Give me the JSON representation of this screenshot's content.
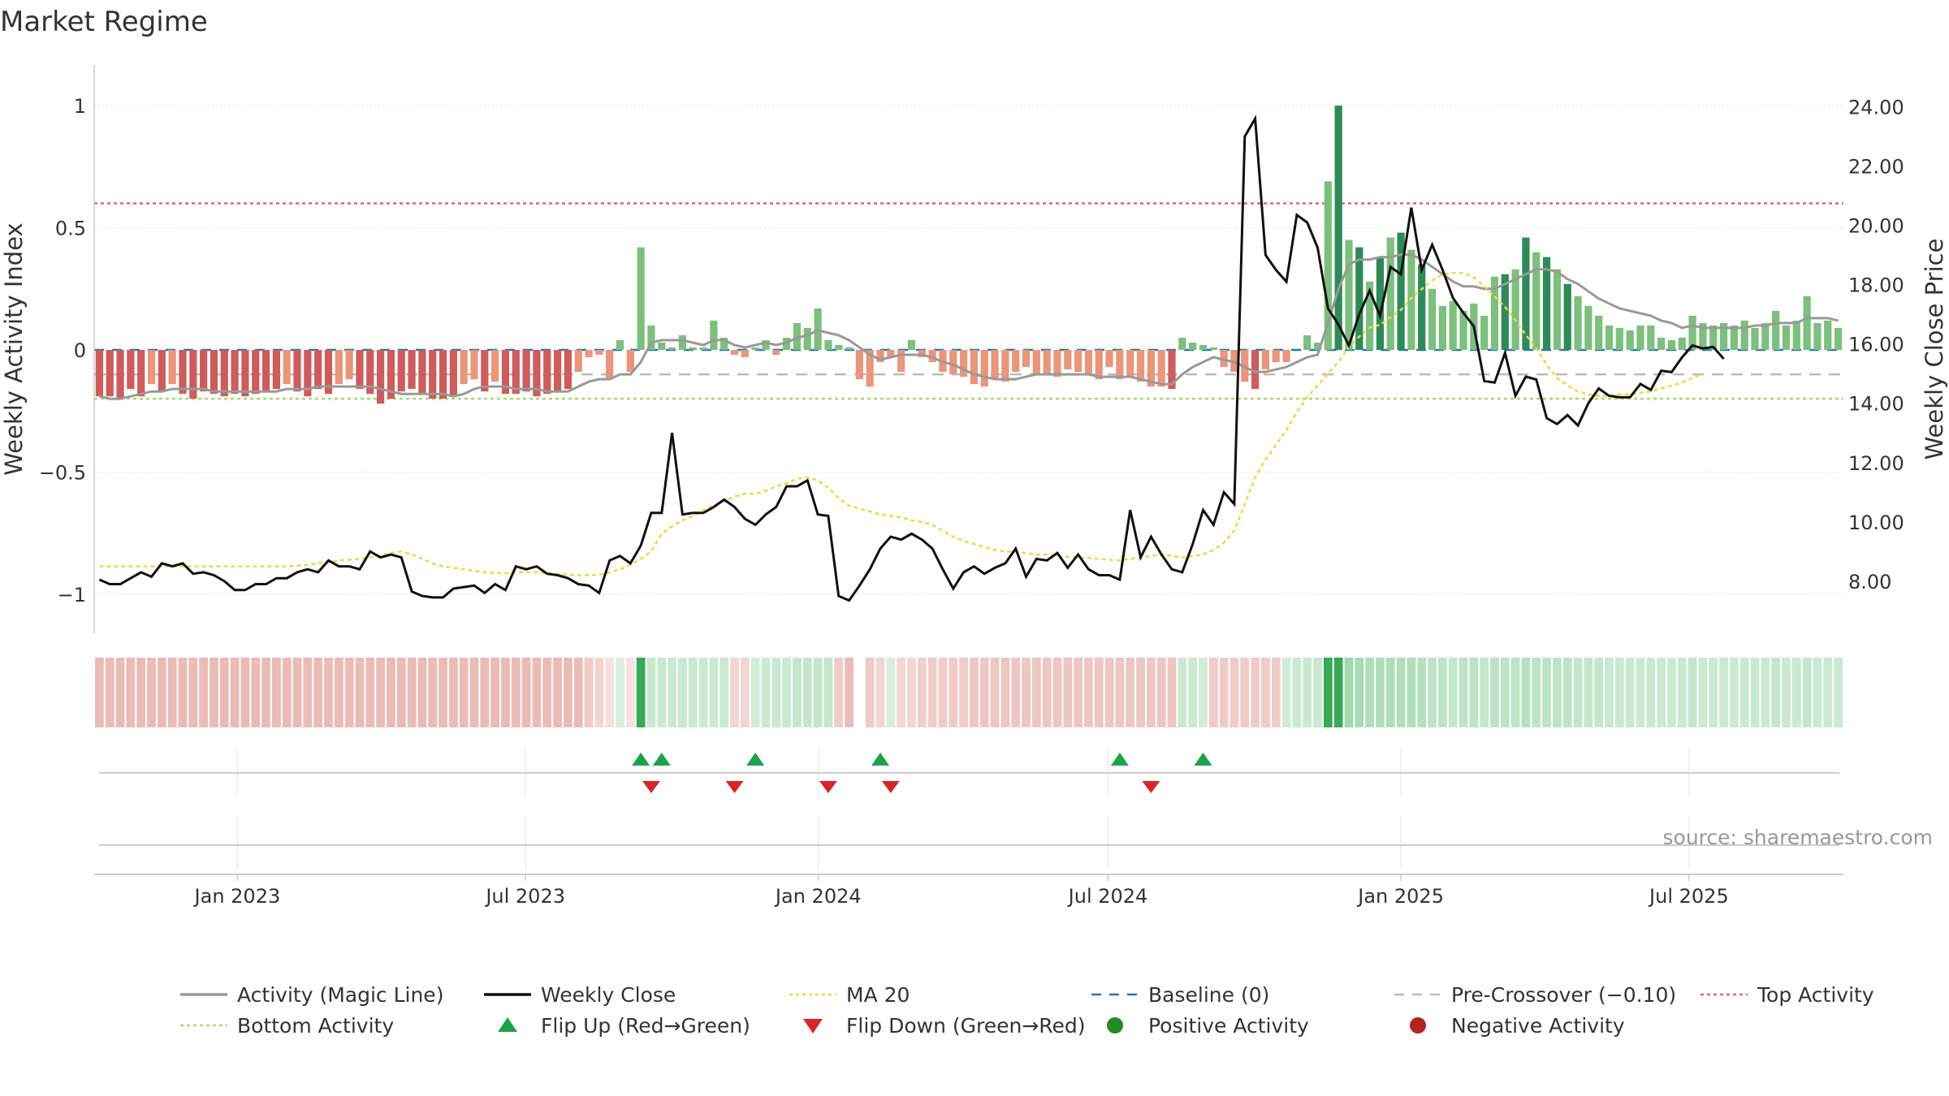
{
  "title": "Market Regime",
  "source": "source: sharemaestro.com",
  "colors": {
    "strong_pos": "#2e8b57",
    "weak_pos": "#7dbf7d",
    "strong_neg": "#cd5c5c",
    "weak_neg": "#e9967a",
    "magic_line": "#999999",
    "close": "#111111",
    "ma20": "#f0d84a",
    "baseline": "#1f77b4",
    "pre_crossover": "#bbbbbb",
    "top_activity": "#e0608a",
    "bottom_activity": "#a6d96a",
    "flip_up": "#1ca34a",
    "flip_down": "#d62728",
    "positive_dot": "#228b22",
    "negative_dot": "#b22222"
  },
  "chart_data": {
    "type": "bar",
    "x_axis": {
      "start": "2022-10-03",
      "end": "2025-10-06",
      "tick_dates": [
        "2023-01-01",
        "2023-07-01",
        "2024-01-01",
        "2024-07-01",
        "2025-01-01",
        "2025-07-01"
      ],
      "tick_labels": [
        "Jan 2023",
        "Jul 2023",
        "Jan 2024",
        "Jul 2024",
        "Jan 2025",
        "Jul 2025"
      ]
    },
    "y_left": {
      "label": "Weekly Activity Index",
      "range": [
        -1.08,
        1.08
      ],
      "ticks": [
        -1,
        -0.5,
        0,
        0.5,
        1
      ],
      "tick_labels": [
        "−1",
        "−0.5",
        "0",
        "0.5",
        "1"
      ]
    },
    "y_right": {
      "label": "Weekly Close Price",
      "range": [
        6.9,
        24.7
      ],
      "ticks": [
        8,
        10,
        12,
        14,
        16,
        18,
        20,
        22,
        24
      ],
      "tick_labels": [
        "8.00",
        "10.00",
        "12.00",
        "14.00",
        "16.00",
        "18.00",
        "20.00",
        "22.00",
        "24.00"
      ]
    },
    "reference_lines": {
      "baseline": 0,
      "pre_crossover": -0.1,
      "top_activity": 0.6,
      "bottom_activity": -0.2
    },
    "activity": [
      -0.19,
      -0.19,
      -0.2,
      -0.16,
      -0.19,
      -0.14,
      -0.17,
      -0.14,
      -0.18,
      -0.2,
      -0.17,
      -0.18,
      -0.19,
      -0.18,
      -0.19,
      -0.18,
      -0.17,
      -0.16,
      -0.14,
      -0.17,
      -0.19,
      -0.16,
      -0.18,
      -0.14,
      -0.12,
      -0.16,
      -0.18,
      -0.22,
      -0.2,
      -0.17,
      -0.16,
      -0.18,
      -0.2,
      -0.2,
      -0.19,
      -0.14,
      -0.12,
      -0.17,
      -0.13,
      -0.18,
      -0.18,
      -0.17,
      -0.19,
      -0.18,
      -0.17,
      -0.16,
      -0.09,
      -0.03,
      -0.02,
      -0.12,
      0.04,
      -0.09,
      0.42,
      0.1,
      0.03,
      0.01,
      0.06,
      0.01,
      0.01,
      0.12,
      0.05,
      -0.02,
      -0.03,
      0.01,
      0.04,
      -0.02,
      0.05,
      0.11,
      0.09,
      0.17,
      0.04,
      0.02,
      0.01,
      -0.12,
      -0.15,
      -0.05,
      -0.03,
      -0.09,
      0.04,
      -0.03,
      -0.05,
      -0.09,
      -0.1,
      -0.11,
      -0.14,
      -0.15,
      -0.12,
      -0.13,
      -0.09,
      -0.07,
      -0.1,
      -0.1,
      -0.11,
      -0.08,
      -0.09,
      -0.1,
      -0.12,
      -0.07,
      -0.12,
      -0.11,
      -0.13,
      -0.15,
      -0.15,
      -0.16,
      0.05,
      0.03,
      0.02,
      0.01,
      -0.07,
      -0.09,
      -0.13,
      -0.16,
      -0.08,
      -0.05,
      -0.05,
      0.0,
      0.06,
      0.03,
      0.69,
      1.0,
      0.45,
      0.42,
      0.28,
      0.38,
      0.46,
      0.48,
      0.41,
      0.35,
      0.25,
      0.18,
      0.2,
      0.16,
      0.19,
      0.14,
      0.3,
      0.31,
      0.33,
      0.46,
      0.4,
      0.38,
      0.33,
      0.27,
      0.22,
      0.18,
      0.14,
      0.1,
      0.09,
      0.08,
      0.1,
      0.1,
      0.05,
      0.04,
      0.05,
      0.14,
      0.11,
      0.1,
      0.11,
      0.1,
      0.12,
      0.09,
      0.11,
      0.16,
      0.1,
      0.12,
      0.22,
      0.11,
      0.12,
      0.09
    ],
    "magic_line": [
      -0.19,
      -0.2,
      -0.2,
      -0.19,
      -0.18,
      -0.17,
      -0.17,
      -0.16,
      -0.16,
      -0.16,
      -0.16,
      -0.17,
      -0.17,
      -0.17,
      -0.17,
      -0.17,
      -0.17,
      -0.17,
      -0.16,
      -0.16,
      -0.16,
      -0.15,
      -0.15,
      -0.15,
      -0.15,
      -0.15,
      -0.15,
      -0.16,
      -0.17,
      -0.18,
      -0.18,
      -0.18,
      -0.18,
      -0.18,
      -0.19,
      -0.18,
      -0.16,
      -0.15,
      -0.15,
      -0.15,
      -0.16,
      -0.16,
      -0.16,
      -0.17,
      -0.17,
      -0.17,
      -0.15,
      -0.13,
      -0.12,
      -0.12,
      -0.1,
      -0.1,
      -0.05,
      0.03,
      0.04,
      0.04,
      0.04,
      0.03,
      0.02,
      0.04,
      0.04,
      0.02,
      0.01,
      0.02,
      0.03,
      0.02,
      0.03,
      0.05,
      0.06,
      0.08,
      0.07,
      0.06,
      0.04,
      0.01,
      -0.02,
      -0.04,
      -0.03,
      -0.02,
      -0.02,
      -0.02,
      -0.03,
      -0.05,
      -0.06,
      -0.08,
      -0.1,
      -0.11,
      -0.12,
      -0.12,
      -0.12,
      -0.11,
      -0.1,
      -0.1,
      -0.1,
      -0.1,
      -0.1,
      -0.1,
      -0.11,
      -0.11,
      -0.11,
      -0.11,
      -0.12,
      -0.13,
      -0.14,
      -0.14,
      -0.1,
      -0.07,
      -0.05,
      -0.03,
      -0.04,
      -0.05,
      -0.07,
      -0.09,
      -0.09,
      -0.08,
      -0.07,
      -0.05,
      -0.03,
      -0.02,
      0.11,
      0.25,
      0.35,
      0.37,
      0.37,
      0.38,
      0.38,
      0.39,
      0.39,
      0.37,
      0.34,
      0.31,
      0.28,
      0.26,
      0.26,
      0.25,
      0.25,
      0.27,
      0.29,
      0.31,
      0.33,
      0.33,
      0.32,
      0.29,
      0.27,
      0.24,
      0.21,
      0.19,
      0.17,
      0.16,
      0.15,
      0.14,
      0.12,
      0.11,
      0.09,
      0.1,
      0.09,
      0.09,
      0.09,
      0.09,
      0.09,
      0.1,
      0.1,
      0.11,
      0.11,
      0.11,
      0.13,
      0.13,
      0.13,
      0.12
    ],
    "weekly_close": [
      8.05,
      7.9,
      7.9,
      8.1,
      8.3,
      8.15,
      8.6,
      8.5,
      8.6,
      8.25,
      8.3,
      8.2,
      8.0,
      7.7,
      7.7,
      7.9,
      7.9,
      8.1,
      8.1,
      8.3,
      8.4,
      8.3,
      8.7,
      8.5,
      8.5,
      8.4,
      9.0,
      8.8,
      8.9,
      8.8,
      7.65,
      7.5,
      7.45,
      7.45,
      7.75,
      7.8,
      7.85,
      7.6,
      7.9,
      7.7,
      8.5,
      8.4,
      8.5,
      8.25,
      8.2,
      8.1,
      7.9,
      7.85,
      7.6,
      8.7,
      8.85,
      8.6,
      9.2,
      10.3,
      10.3,
      13.0,
      10.25,
      10.3,
      10.3,
      10.5,
      10.75,
      10.5,
      10.1,
      9.9,
      10.25,
      10.5,
      11.2,
      11.2,
      11.4,
      10.25,
      10.2,
      7.5,
      7.35,
      7.85,
      8.4,
      9.1,
      9.5,
      9.4,
      9.6,
      9.4,
      9.1,
      8.4,
      7.75,
      8.3,
      8.5,
      8.25,
      8.45,
      8.6,
      9.1,
      8.15,
      8.75,
      8.7,
      8.95,
      8.45,
      8.9,
      8.4,
      8.2,
      8.2,
      8.05,
      10.4,
      8.8,
      9.5,
      8.9,
      8.4,
      8.3,
      9.25,
      10.4,
      9.9,
      11.0,
      10.6,
      23.0,
      23.6,
      19.0,
      18.5,
      18.1,
      20.35,
      20.1,
      19.25,
      17.2,
      16.65,
      15.95,
      17.0,
      17.8,
      16.95,
      18.6,
      18.35,
      20.6,
      18.5,
      19.35,
      18.5,
      17.55,
      17.05,
      16.6,
      14.75,
      14.7,
      15.7,
      14.25,
      14.9,
      14.8,
      13.5,
      13.3,
      13.6,
      13.25,
      14.0,
      14.5,
      14.25,
      14.2,
      14.2,
      14.65,
      14.45,
      15.1,
      15.05,
      15.55,
      15.95,
      15.85,
      15.9,
      15.5
    ],
    "ma20": [
      8.5,
      8.5,
      8.5,
      8.5,
      8.5,
      8.5,
      8.5,
      8.5,
      8.5,
      8.5,
      8.5,
      8.5,
      8.5,
      8.5,
      8.5,
      8.5,
      8.5,
      8.5,
      8.5,
      8.52,
      8.55,
      8.6,
      8.65,
      8.7,
      8.72,
      8.75,
      8.8,
      8.87,
      8.95,
      9.0,
      8.9,
      8.75,
      8.6,
      8.5,
      8.45,
      8.4,
      8.35,
      8.3,
      8.28,
      8.27,
      8.3,
      8.3,
      8.3,
      8.28,
      8.25,
      8.22,
      8.2,
      8.2,
      8.22,
      8.3,
      8.4,
      8.55,
      8.75,
      9.0,
      9.6,
      9.85,
      10.05,
      10.2,
      10.4,
      10.55,
      10.7,
      10.85,
      10.95,
      10.95,
      11.05,
      11.2,
      11.3,
      11.45,
      11.5,
      11.4,
      11.15,
      10.8,
      10.55,
      10.45,
      10.35,
      10.25,
      10.2,
      10.15,
      10.05,
      10.0,
      9.9,
      9.7,
      9.5,
      9.35,
      9.25,
      9.15,
      9.05,
      9.0,
      9.0,
      8.95,
      8.9,
      8.9,
      8.85,
      8.82,
      8.8,
      8.78,
      8.75,
      8.72,
      8.7,
      8.75,
      8.8,
      8.85,
      8.9,
      8.85,
      8.8,
      8.85,
      8.9,
      9.05,
      9.3,
      9.7,
      10.6,
      11.5,
      12.1,
      12.6,
      13.1,
      13.7,
      14.2,
      14.6,
      15.0,
      15.4,
      15.9,
      16.25,
      16.55,
      16.65,
      16.9,
      17.15,
      17.55,
      17.85,
      18.15,
      18.35,
      18.4,
      18.4,
      18.25,
      17.95,
      17.6,
      17.25,
      16.8,
      16.3,
      15.85,
      15.3,
      14.85,
      14.6,
      14.4,
      14.3,
      14.25,
      14.25,
      14.3,
      14.3,
      14.35,
      14.4,
      14.5,
      14.6,
      14.7,
      14.85,
      15.0
    ],
    "regime_strip_levels": [
      -0.75,
      -0.75,
      -0.75,
      -0.75,
      -0.75,
      -0.75,
      -0.75,
      -0.75,
      -0.75,
      -0.75,
      -0.75,
      -0.75,
      -0.75,
      -0.75,
      -0.75,
      -0.75,
      -0.75,
      -0.75,
      -0.75,
      -0.75,
      -0.75,
      -0.75,
      -0.75,
      -0.75,
      -0.75,
      -0.75,
      -0.75,
      -0.75,
      -0.75,
      -0.75,
      -0.75,
      -0.75,
      -0.75,
      -0.75,
      -0.75,
      -0.75,
      -0.75,
      -0.75,
      -0.75,
      -0.75,
      -0.75,
      -0.75,
      -0.75,
      -0.75,
      -0.75,
      -0.75,
      -0.75,
      -0.6,
      -0.5,
      -0.4,
      0.4,
      -0.4,
      1.0,
      0.5,
      0.5,
      0.5,
      0.5,
      0.5,
      0.5,
      0.5,
      0.5,
      -0.5,
      -0.5,
      0.45,
      0.5,
      0.5,
      0.5,
      0.55,
      0.55,
      0.55,
      0.55,
      -0.6,
      -0.75,
      0,
      -0.6,
      -0.5,
      0.4,
      -0.5,
      -0.5,
      -0.55,
      -0.6,
      -0.6,
      -0.6,
      -0.6,
      -0.65,
      -0.65,
      -0.65,
      -0.65,
      -0.65,
      -0.65,
      -0.65,
      -0.65,
      -0.65,
      -0.65,
      -0.65,
      -0.65,
      -0.65,
      -0.65,
      -0.65,
      -0.65,
      -0.65,
      -0.65,
      -0.65,
      -0.65,
      0.5,
      0.5,
      0.45,
      -0.6,
      -0.6,
      -0.6,
      -0.6,
      -0.6,
      -0.6,
      -0.6,
      0.45,
      0.5,
      0.5,
      0.5,
      1.0,
      1.0,
      0.8,
      0.75,
      0.7,
      0.7,
      0.7,
      0.7,
      0.7,
      0.65,
      0.6,
      0.6,
      0.55,
      0.6,
      0.6,
      0.55,
      0.6,
      0.6,
      0.6,
      0.65,
      0.6,
      0.6,
      0.6,
      0.6,
      0.55,
      0.55,
      0.55,
      0.5,
      0.5,
      0.5,
      0.5,
      0.5,
      0.5,
      0.5,
      0.5,
      0.55,
      0.5,
      0.5,
      0.5,
      0.5,
      0.5,
      0.5,
      0.5,
      0.55,
      0.5,
      0.5,
      0.55,
      0.5,
      0.5,
      0.5
    ],
    "flip_up_weeks": [
      52,
      54,
      63,
      75,
      98,
      106
    ],
    "flip_down_weeks": [
      53,
      61,
      70,
      76,
      101
    ],
    "legend": [
      {
        "label": "Activity (Magic Line)",
        "kind": "line",
        "color": "#999999",
        "dash": ""
      },
      {
        "label": "Weekly Close",
        "kind": "line",
        "color": "#111111",
        "dash": ""
      },
      {
        "label": "MA 20",
        "kind": "line",
        "color": "#f0d84a",
        "dash": "4,4"
      },
      {
        "label": "Baseline (0)",
        "kind": "line",
        "color": "#1f77b4",
        "dash": "12,10"
      },
      {
        "label": "Pre-Crossover (−0.10)",
        "kind": "line",
        "color": "#bbbbbb",
        "dash": "12,10"
      },
      {
        "label": "Top Activity",
        "kind": "line",
        "color": "#e0608a",
        "dash": "4,4"
      },
      {
        "label": "Bottom Activity",
        "kind": "line",
        "color": "#a6d96a",
        "dash": "4,4"
      },
      {
        "label": "Flip Up (Red→Green)",
        "kind": "up",
        "color": "#1ca34a",
        "dash": ""
      },
      {
        "label": "Flip Down (Green→Red)",
        "kind": "down",
        "color": "#d62728",
        "dash": ""
      },
      {
        "label": "Positive Activity",
        "kind": "dot",
        "color": "#228b22",
        "dash": ""
      },
      {
        "label": "Negative Activity",
        "kind": "dot",
        "color": "#b22222",
        "dash": ""
      }
    ]
  }
}
